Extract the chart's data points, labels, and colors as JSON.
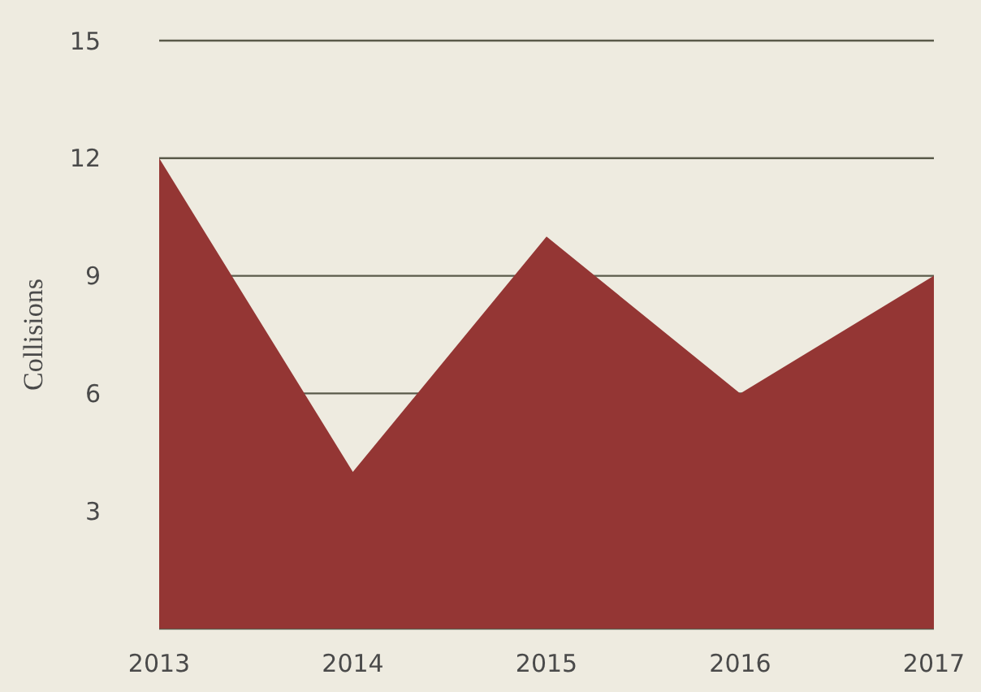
{
  "chart_data": {
    "type": "area",
    "ylabel": "Collisions",
    "categories": [
      "2013",
      "2014",
      "2015",
      "2016",
      "2017"
    ],
    "series": [
      {
        "color": "#943634",
        "values": [
          12,
          4,
          10,
          6,
          9
        ]
      }
    ],
    "ylim": [
      0,
      15
    ],
    "yticks": [
      3,
      6,
      9,
      12,
      15
    ],
    "grid": "y"
  }
}
